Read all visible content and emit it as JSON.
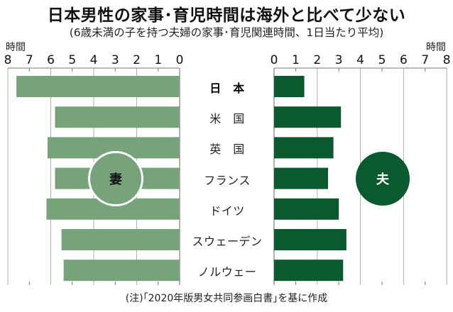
{
  "header": {
    "title": "日本男性の家事･育児時間は海外と比べて少ない",
    "subtitle": "(6歳未満の子を持つ夫婦の家事･育児関連時間、1日当たり平均)"
  },
  "axis": {
    "unit_left": "時間",
    "unit_right": "時間",
    "left_ticks": [
      "8",
      "7",
      "6",
      "5",
      "4",
      "3",
      "2",
      "1",
      "0"
    ],
    "right_ticks": [
      "0",
      "1",
      "2",
      "3",
      "4",
      "5",
      "6",
      "7",
      "8"
    ]
  },
  "legend": {
    "wife_label": "妻",
    "husband_label": "夫"
  },
  "countries": [
    "日　本",
    "米　国",
    "英　国",
    "フランス",
    "ドイツ",
    "スウェーデン",
    "ノルウェー"
  ],
  "footnote": "(注)｢2020年版男女共同参画白書｣を基に作成",
  "colors": {
    "wife": "#76a37a",
    "husband": "#0b5a2e",
    "grid": "#b0b0b0",
    "axis": "#888888"
  },
  "chart_data": {
    "type": "bar",
    "orientation": "horizontal-butterfly",
    "title": "日本男性の家事･育児時間は海外と比べて少ない",
    "subtitle": "(6歳未満の子を持つ夫婦の家事･育児関連時間、1日当たり平均)",
    "categories": [
      "日本",
      "米国",
      "英国",
      "フランス",
      "ドイツ",
      "スウェーデン",
      "ノルウェー"
    ],
    "series": [
      {
        "name": "妻",
        "side": "left",
        "color": "#76a37a",
        "values": [
          7.6,
          5.8,
          6.15,
          5.8,
          6.2,
          5.5,
          5.4
        ]
      },
      {
        "name": "夫",
        "side": "right",
        "color": "#0b5a2e",
        "values": [
          1.4,
          3.1,
          2.75,
          2.5,
          3.0,
          3.35,
          3.2
        ]
      }
    ],
    "xlabel": "時間",
    "ylabel": "",
    "xlim": [
      0,
      8
    ],
    "xticks": [
      0,
      1,
      2,
      3,
      4,
      5,
      6,
      7,
      8
    ],
    "grid": true,
    "legend_position": "inline circles",
    "annotation": "(注)｢2020年版男女共同参画白書｣を基に作成"
  }
}
